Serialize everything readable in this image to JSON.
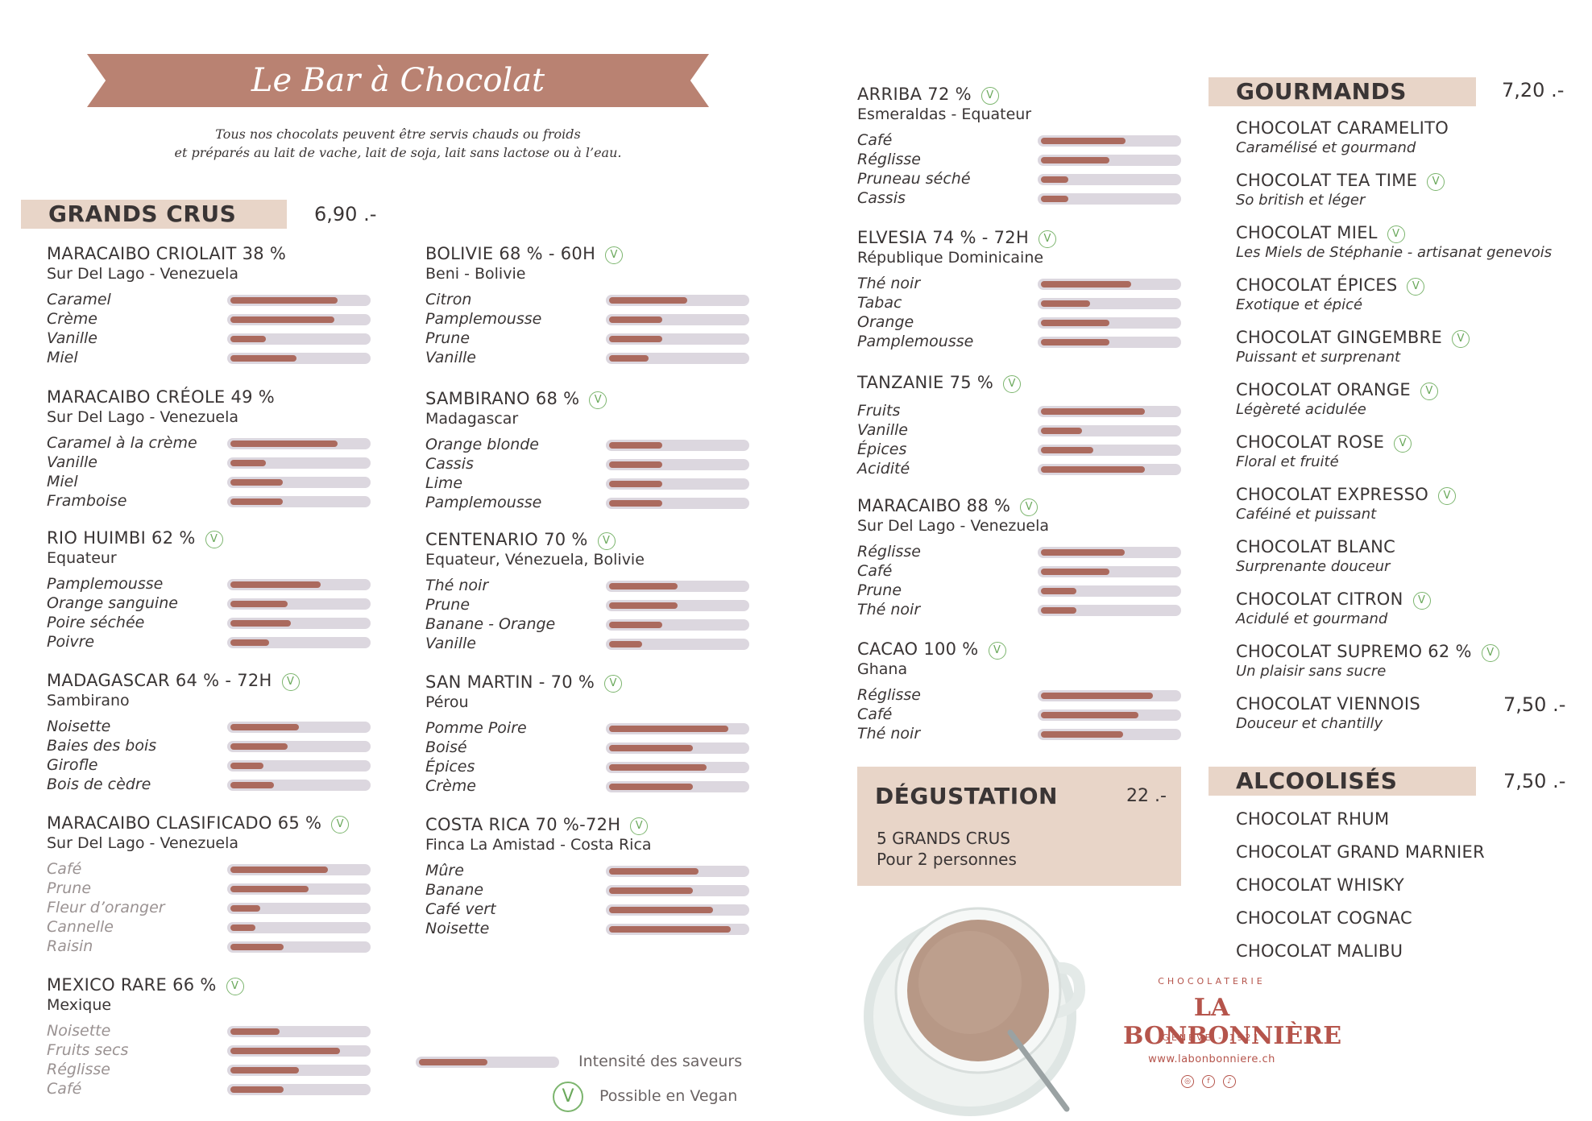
{
  "title": "Le Bar à Chocolat",
  "subtitle": {
    "line1": "Tous nos chocolats peuvent être servis chauds ou froids",
    "line2": "et préparés au lait de vache, lait de soja, lait sans lactose ou à l’eau."
  },
  "colors": {
    "accent": "#b98272",
    "section_bg": "#e8d5c8",
    "bar_fill": "#ab6a5e",
    "bar_track": "#dcd7df",
    "vegan": "#7cb56e",
    "brand": "#b5544b"
  },
  "grands_crus": {
    "label": "GRANDS CRUS",
    "price": "6,90 .-",
    "products": [
      {
        "name": "MARACAIBO CRIOLAIT 38 %",
        "origin": "Sur Del Lago - Venezuela",
        "vegan": false,
        "notes": [
          {
            "label": "Caramel",
            "intensity": 0.78
          },
          {
            "label": "Crème",
            "intensity": 0.76
          },
          {
            "label": "Vanille",
            "intensity": 0.26
          },
          {
            "label": "Miel",
            "intensity": 0.48
          }
        ]
      },
      {
        "name": "MARACAIBO CRÉOLE 49 %",
        "origin": "Sur Del Lago - Venezuela",
        "vegan": false,
        "notes": [
          {
            "label": "Caramel à la crème",
            "intensity": 0.78
          },
          {
            "label": "Vanille",
            "intensity": 0.26
          },
          {
            "label": "Miel",
            "intensity": 0.38
          },
          {
            "label": "Framboise",
            "intensity": 0.38
          }
        ]
      },
      {
        "name": "RIO HUIMBI 62 %",
        "origin": "Equateur",
        "vegan": true,
        "notes": [
          {
            "label": "Pamplemousse",
            "intensity": 0.66
          },
          {
            "label": "Orange sanguine",
            "intensity": 0.42
          },
          {
            "label": "Poire séchée",
            "intensity": 0.44
          },
          {
            "label": "Poivre",
            "intensity": 0.28
          }
        ]
      },
      {
        "name": "MADAGASCAR 64 % - 72H",
        "origin": "Sambirano",
        "vegan": true,
        "notes": [
          {
            "label": "Noisette",
            "intensity": 0.5
          },
          {
            "label": "Baies des bois",
            "intensity": 0.42
          },
          {
            "label": "Girofle",
            "intensity": 0.24
          },
          {
            "label": "Bois de cèdre",
            "intensity": 0.32
          }
        ]
      },
      {
        "name": "MARACAIBO CLASIFICADO 65 %",
        "origin": "Sur Del Lago - Venezuela",
        "vegan": true,
        "light": true,
        "notes": [
          {
            "label": "Café",
            "intensity": 0.71
          },
          {
            "label": "Prune",
            "intensity": 0.57
          },
          {
            "label": "Fleur d’oranger",
            "intensity": 0.22
          },
          {
            "label": "Cannelle",
            "intensity": 0.18
          },
          {
            "label": "Raisin",
            "intensity": 0.39
          }
        ]
      },
      {
        "name": "MEXICO RARE 66 %",
        "origin": "Mexique",
        "vegan": true,
        "light": true,
        "notes": [
          {
            "label": "Noisette",
            "intensity": 0.36
          },
          {
            "label": "Fruits secs",
            "intensity": 0.8
          },
          {
            "label": "Réglisse",
            "intensity": 0.5
          },
          {
            "label": "Café",
            "intensity": 0.39
          }
        ]
      },
      {
        "name": "BOLIVIE 68 % - 60H",
        "origin": "Beni - Bolivie",
        "vegan": true,
        "notes": [
          {
            "label": "Citron",
            "intensity": 0.57
          },
          {
            "label": "Pamplemousse",
            "intensity": 0.39
          },
          {
            "label": "Prune",
            "intensity": 0.39
          },
          {
            "label": "Vanille",
            "intensity": 0.29
          }
        ]
      },
      {
        "name": "SAMBIRANO 68 %",
        "origin": "Madagascar",
        "vegan": true,
        "notes": [
          {
            "label": "Orange  blonde",
            "intensity": 0.39
          },
          {
            "label": "Cassis",
            "intensity": 0.39
          },
          {
            "label": "Lime",
            "intensity": 0.39
          },
          {
            "label": "Pamplemousse",
            "intensity": 0.39
          }
        ]
      },
      {
        "name": "CENTENARIO 70 %",
        "origin": "Equateur, Vénezuela, Bolivie",
        "vegan": true,
        "notes": [
          {
            "label": "Thé noir",
            "intensity": 0.5
          },
          {
            "label": "Prune",
            "intensity": 0.5
          },
          {
            "label": "Banane - Orange",
            "intensity": 0.39
          },
          {
            "label": "Vanille",
            "intensity": 0.24
          }
        ]
      },
      {
        "name": "SAN MARTIN - 70 %",
        "origin": "Pérou",
        "vegan": true,
        "notes": [
          {
            "label": "Pomme Poire",
            "intensity": 0.87
          },
          {
            "label": "Boisé",
            "intensity": 0.61
          },
          {
            "label": "Épices",
            "intensity": 0.71
          },
          {
            "label": "Crème",
            "intensity": 0.61
          }
        ]
      },
      {
        "name": "COSTA RICA 70 %-72H",
        "origin": "Finca La Amistad - Costa Rica",
        "vegan": true,
        "notes": [
          {
            "label": "Mûre",
            "intensity": 0.65
          },
          {
            "label": "Banane",
            "intensity": 0.61
          },
          {
            "label": "Café vert",
            "intensity": 0.76
          },
          {
            "label": "Noisette",
            "intensity": 0.89
          }
        ]
      },
      {
        "name": "ARRIBA 72 %",
        "origin": "Esmeraldas - Equateur",
        "vegan": true,
        "notes": [
          {
            "label": "Café",
            "intensity": 0.62
          },
          {
            "label": "Réglisse",
            "intensity": 0.5
          },
          {
            "label": "Pruneau séché",
            "intensity": 0.2
          },
          {
            "label": "Cassis",
            "intensity": 0.2
          }
        ]
      },
      {
        "name": "ELVESIA 74 % - 72H",
        "origin": "République Dominicaine",
        "vegan": true,
        "notes": [
          {
            "label": "Thé noir",
            "intensity": 0.66
          },
          {
            "label": "Tabac",
            "intensity": 0.36
          },
          {
            "label": "Orange",
            "intensity": 0.5
          },
          {
            "label": "Pamplemousse",
            "intensity": 0.5
          }
        ]
      },
      {
        "name": "TANZANIE 75 %",
        "origin": "",
        "vegan": true,
        "notes": [
          {
            "label": "Fruits",
            "intensity": 0.76
          },
          {
            "label": "Vanille",
            "intensity": 0.3
          },
          {
            "label": "Épices",
            "intensity": 0.38
          },
          {
            "label": "Acidité",
            "intensity": 0.76
          }
        ]
      },
      {
        "name": "MARACAIBO 88 %",
        "origin": "Sur Del Lago - Venezuela",
        "vegan": true,
        "notes": [
          {
            "label": "Réglisse",
            "intensity": 0.61
          },
          {
            "label": "Café",
            "intensity": 0.5
          },
          {
            "label": "Prune",
            "intensity": 0.26
          },
          {
            "label": "Thé noir",
            "intensity": 0.26
          }
        ]
      },
      {
        "name": "CACAO 100 %",
        "origin": "Ghana",
        "vegan": true,
        "notes": [
          {
            "label": "Réglisse",
            "intensity": 0.82
          },
          {
            "label": "Café",
            "intensity": 0.71
          },
          {
            "label": "Thé noir",
            "intensity": 0.6
          }
        ]
      }
    ]
  },
  "legend": {
    "intensity_label": "Intensité des saveurs",
    "intensity_example": 0.5,
    "vegan_label": "Possible en Vegan",
    "vegan_symbol": "V"
  },
  "degustation": {
    "label": "DÉGUSTATION",
    "price": "22 .-",
    "line1": "5 GRANDS CRUS",
    "line2": "Pour 2 personnes"
  },
  "gourmands": {
    "label": "GOURMANDS",
    "price": "7,20 .-",
    "items": [
      {
        "name": "CHOCOLAT CARAMELITO",
        "desc": "Caramélisé et gourmand",
        "vegan": false
      },
      {
        "name": "CHOCOLAT TEA TIME",
        "desc": "So british et léger",
        "vegan": true
      },
      {
        "name": "CHOCOLAT MIEL",
        "desc": "Les Miels de Stéphanie - artisanat genevois",
        "vegan": true
      },
      {
        "name": "CHOCOLAT ÉPICES",
        "desc": "Exotique et épicé",
        "vegan": true
      },
      {
        "name": "CHOCOLAT GINGEMBRE",
        "desc": "Puissant et surprenant",
        "vegan": true
      },
      {
        "name": "CHOCOLAT ORANGE",
        "desc": "Légèreté acidulée",
        "vegan": true
      },
      {
        "name": "CHOCOLAT ROSE",
        "desc": "Floral et fruité",
        "vegan": true
      },
      {
        "name": "CHOCOLAT EXPRESSO",
        "desc": "Caféiné et puissant",
        "vegan": true
      },
      {
        "name": "CHOCOLAT BLANC",
        "desc": "Surprenante douceur",
        "vegan": false
      },
      {
        "name": "CHOCOLAT CITRON",
        "desc": "Acidulé et gourmand",
        "vegan": true
      },
      {
        "name": "CHOCOLAT SUPREMO 62 %",
        "desc": "Un plaisir sans sucre",
        "vegan": true
      },
      {
        "name": "CHOCOLAT VIENNOIS",
        "desc": "Douceur et chantilly",
        "vegan": false,
        "price": "7,50 .-"
      }
    ]
  },
  "alcoolises": {
    "label": "ALCOOLISÉS",
    "price": "7,50 .-",
    "items": [
      "CHOCOLAT RHUM",
      "CHOCOLAT GRAND MARNIER",
      "CHOCOLAT WHISKY",
      "CHOCOLAT COGNAC",
      "CHOCOLAT MALIBU"
    ]
  },
  "brand": {
    "top": "CHOCOLATERIE",
    "main": "LA BONBONNIÈRE",
    "sub": "GENÈVE - 1921",
    "url": "www.labonbonniere.ch"
  },
  "icons": {
    "social": [
      "instagram-icon",
      "facebook-icon",
      "tiktok-icon"
    ],
    "photo": "hot-chocolate-cup"
  }
}
